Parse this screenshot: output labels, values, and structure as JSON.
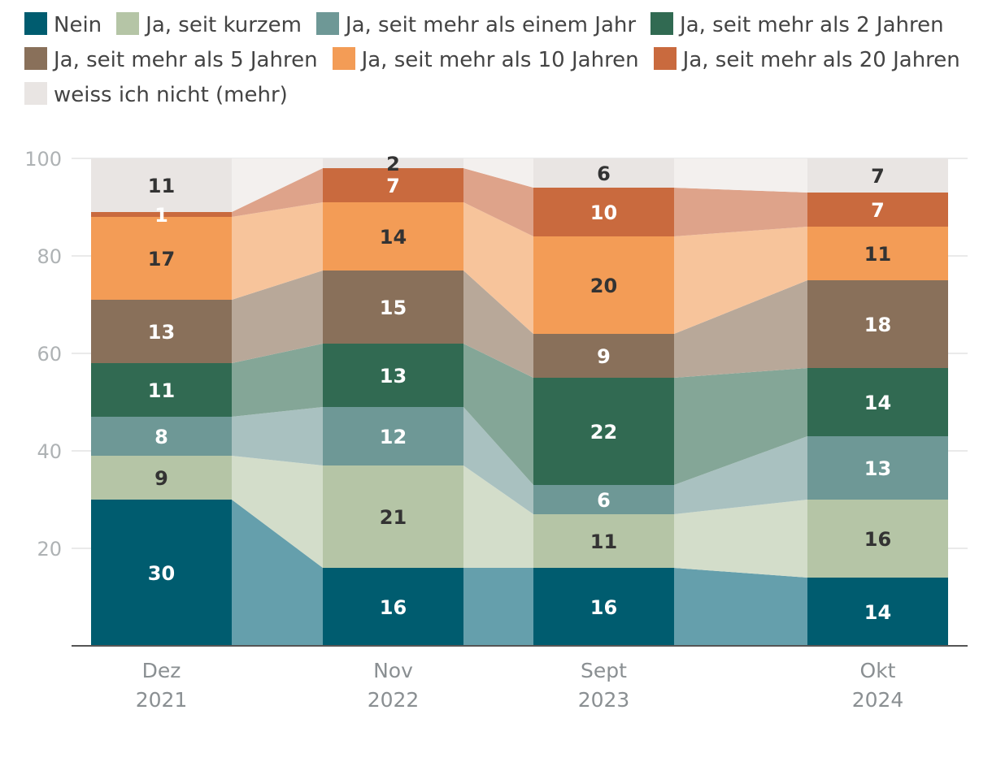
{
  "chart_data": {
    "type": "bar",
    "stacked": true,
    "categories": [
      {
        "line1": "Dez",
        "line2": "2021"
      },
      {
        "line1": "Nov",
        "line2": "2022"
      },
      {
        "line1": "Sept",
        "line2": "2023"
      },
      {
        "line1": "Okt",
        "line2": "2024"
      }
    ],
    "ylim": [
      0,
      100
    ],
    "yticks": [
      "20",
      "40",
      "60",
      "80",
      "100"
    ],
    "series": [
      {
        "name": "Nein",
        "color": "#005c6f",
        "light": "#659fac",
        "text_color": "#ffffff",
        "values": [
          30,
          16,
          16,
          14
        ]
      },
      {
        "name": "Ja, seit kurzem",
        "color": "#b5c5a6",
        "light": "#d3ddca",
        "text_color": "#333333",
        "values": [
          9,
          21,
          11,
          16
        ]
      },
      {
        "name": "Ja, seit mehr als einem Jahr",
        "color": "#6e9896",
        "light": "#a9c1c0",
        "text_color": "#ffffff",
        "values": [
          8,
          12,
          6,
          13
        ]
      },
      {
        "name": "Ja, seit mehr als 2 Jahren",
        "color": "#316a52",
        "light": "#84a697",
        "text_color": "#ffffff",
        "values": [
          11,
          13,
          22,
          14
        ]
      },
      {
        "name": "Ja, seit mehr als 5 Jahren",
        "color": "#89705a",
        "light": "#b8a899",
        "text_color": "#ffffff",
        "values": [
          13,
          15,
          9,
          18
        ]
      },
      {
        "name": "Ja, seit mehr als 10 Jahren",
        "color": "#f39c56",
        "light": "#f7c49b",
        "text_color": "#333333",
        "values": [
          17,
          14,
          20,
          11
        ]
      },
      {
        "name": "Ja, seit mehr als 20 Jahren",
        "color": "#c96a3e",
        "light": "#dea38a",
        "text_color": "#ffffff",
        "values": [
          1,
          7,
          10,
          7
        ]
      },
      {
        "name": "weiss ich nicht (mehr)",
        "color": "#e9e5e3",
        "light": "#f3f0ee",
        "text_color": "#333333",
        "values": [
          11,
          2,
          6,
          7
        ]
      }
    ]
  }
}
